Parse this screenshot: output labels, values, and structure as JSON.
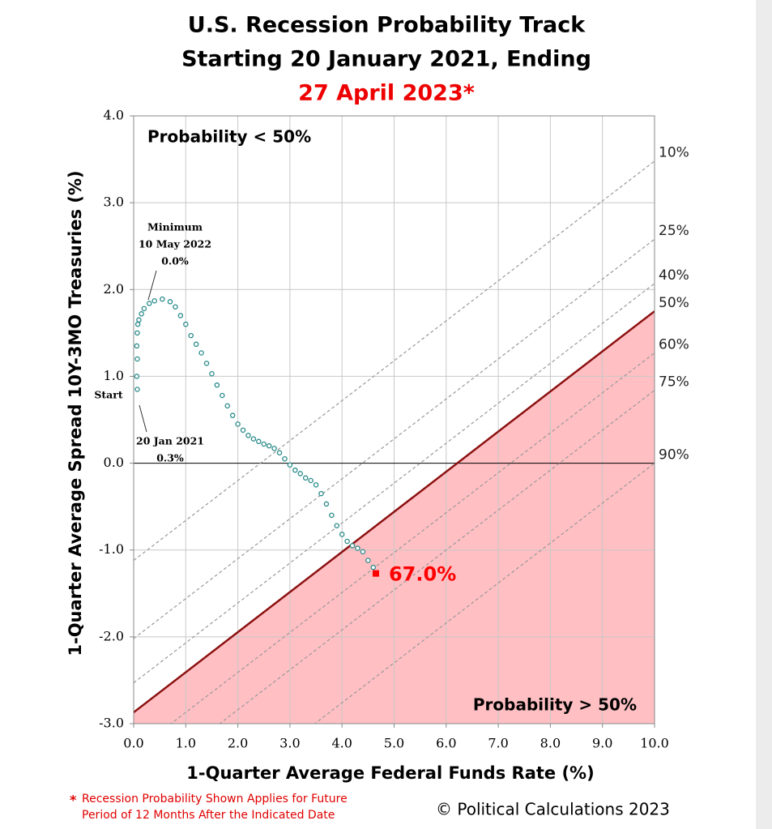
{
  "chart_data": {
    "type": "scatter",
    "title_lines": [
      "U.S. Recession Probability Track",
      "Starting 20 January 2021, Ending",
      "27 April 2023*"
    ],
    "x_label": "1-Quarter Average Federal Funds Rate (%)",
    "y_label": "1-Quarter Average Spread 10Y-3MO Treasuries (%)",
    "xlim": [
      0,
      10
    ],
    "ylim": [
      -3,
      4
    ],
    "xticks": [
      {
        "value": 0,
        "label": "0.0"
      },
      {
        "value": 1,
        "label": "1.0"
      },
      {
        "value": 2,
        "label": "2.0"
      },
      {
        "value": 3,
        "label": "3.0"
      },
      {
        "value": 4,
        "label": "4.0"
      },
      {
        "value": 5,
        "label": "5.0"
      },
      {
        "value": 6,
        "label": "6.0"
      },
      {
        "value": 7,
        "label": "7.0"
      },
      {
        "value": 8,
        "label": "8.0"
      },
      {
        "value": 9,
        "label": "9.0"
      },
      {
        "value": 10,
        "label": "10.0"
      }
    ],
    "yticks": [
      {
        "value": -3,
        "label": "-3.0"
      },
      {
        "value": -2,
        "label": "-2.0"
      },
      {
        "value": -1,
        "label": "-1.0"
      },
      {
        "value": 0,
        "label": "0.0"
      },
      {
        "value": 1,
        "label": "1.0"
      },
      {
        "value": 2,
        "label": "2.0"
      },
      {
        "value": 3,
        "label": "3.0"
      },
      {
        "value": 4,
        "label": "4.0"
      }
    ],
    "grid": true,
    "track": {
      "color": "#2a8a8a",
      "x": [
        0.07,
        0.06,
        0.07,
        0.06,
        0.07,
        0.08,
        0.1,
        0.15,
        0.2,
        0.3,
        0.4,
        0.55,
        0.7,
        0.8,
        0.9,
        1.0,
        1.1,
        1.2,
        1.3,
        1.4,
        1.5,
        1.6,
        1.7,
        1.8,
        1.9,
        2.0,
        2.1,
        2.2,
        2.3,
        2.4,
        2.5,
        2.6,
        2.7,
        2.8,
        2.9,
        3.0,
        3.1,
        3.2,
        3.3,
        3.4,
        3.5,
        3.6,
        3.7,
        3.8,
        3.9,
        4.0,
        4.1,
        4.2,
        4.3,
        4.4,
        4.5,
        4.6,
        4.65
      ],
      "y": [
        0.85,
        1.0,
        1.2,
        1.35,
        1.5,
        1.6,
        1.65,
        1.72,
        1.78,
        1.84,
        1.87,
        1.89,
        1.86,
        1.8,
        1.7,
        1.6,
        1.47,
        1.37,
        1.27,
        1.15,
        1.03,
        0.9,
        0.78,
        0.66,
        0.55,
        0.45,
        0.38,
        0.32,
        0.28,
        0.25,
        0.22,
        0.2,
        0.17,
        0.12,
        0.05,
        -0.02,
        -0.08,
        -0.12,
        -0.17,
        -0.2,
        -0.25,
        -0.35,
        -0.47,
        -0.6,
        -0.72,
        -0.82,
        -0.9,
        -0.95,
        -0.98,
        -1.02,
        -1.12,
        -1.2,
        -1.27
      ]
    },
    "end_color": "#ff0000",
    "end_label": "67.0%",
    "probability_lines": [
      {
        "name": "10%",
        "x": [
          0,
          10
        ],
        "y": [
          -1.12,
          3.48
        ]
      },
      {
        "name": "25%",
        "x": [
          0,
          10
        ],
        "y": [
          -2.02,
          2.58
        ]
      },
      {
        "name": "40%",
        "x": [
          0,
          10
        ],
        "y": [
          -2.53,
          2.07
        ]
      },
      {
        "name": "50%",
        "x": [
          0,
          10
        ],
        "y": [
          -2.87,
          1.75
        ],
        "color": "#8b1010",
        "fill": "#ffbfc3"
      },
      {
        "name": "60%",
        "x": [
          0,
          10
        ],
        "y": [
          -3.33,
          1.27
        ]
      },
      {
        "name": "75%",
        "x": [
          0,
          10
        ],
        "y": [
          -3.76,
          0.84
        ]
      },
      {
        "name": "90%",
        "x": [
          0,
          10
        ],
        "y": [
          -4.6,
          0.0
        ]
      }
    ],
    "region_labels": {
      "above": "Probability < 50%",
      "below": "Probability > 50%"
    },
    "min_note": [
      "Minimum",
      "10 May 2022",
      "0.0%"
    ],
    "start_note": [
      "Start",
      "20 Jan 2021",
      "0.3%"
    ],
    "footnote": [
      "*",
      "Recession Probability Shown Applies for Future",
      "Period of 12 Months After the Indicated Date"
    ],
    "credit": "© Political Calculations 2023"
  }
}
